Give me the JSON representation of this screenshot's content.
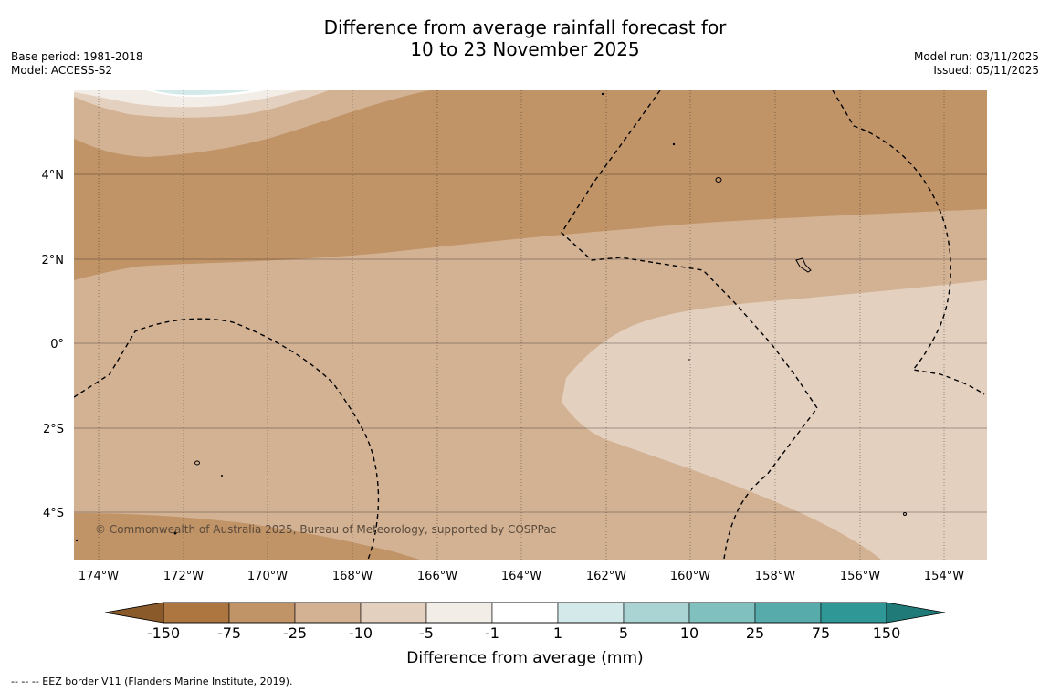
{
  "title": {
    "line1": "Difference from average rainfall forecast for",
    "line2": "10 to 23 November 2025"
  },
  "meta_left": {
    "base_period": "Base period: 1981-2018",
    "model": "Model: ACCESS-S2"
  },
  "meta_right": {
    "model_run": "Model run: 03/11/2025",
    "issued": "Issued: 05/11/2025"
  },
  "map": {
    "lat_labels": [
      "4°N",
      "2°N",
      "0°",
      "2°S",
      "4°S"
    ],
    "lon_labels": [
      "174°W",
      "172°W",
      "170°W",
      "168°W",
      "166°W",
      "164°W",
      "162°W",
      "160°W",
      "158°W",
      "156°W",
      "154°W"
    ],
    "copyright": "© Commonwealth of Australia 2025, Bureau of Meteorology, supported by COSPPac"
  },
  "colorbar": {
    "ticks": [
      "-150",
      "-75",
      "-25",
      "-10",
      "-5",
      "-1",
      "1",
      "5",
      "10",
      "25",
      "75",
      "150"
    ],
    "colors": [
      "#ad753f",
      "#c19468",
      "#d3b294",
      "#e4d0bf",
      "#f3ede8",
      "#ffffff",
      "#d4eaea",
      "#aad4d4",
      "#80c0bf",
      "#57acab",
      "#2f9896"
    ],
    "extend_low_color": "#8b5a2b",
    "extend_high_color": "#1f7a78",
    "title": "Difference from average (mm)"
  },
  "footnote": "-- -- -- EEZ border V11 (Flanders Marine Institute, 2019)."
}
